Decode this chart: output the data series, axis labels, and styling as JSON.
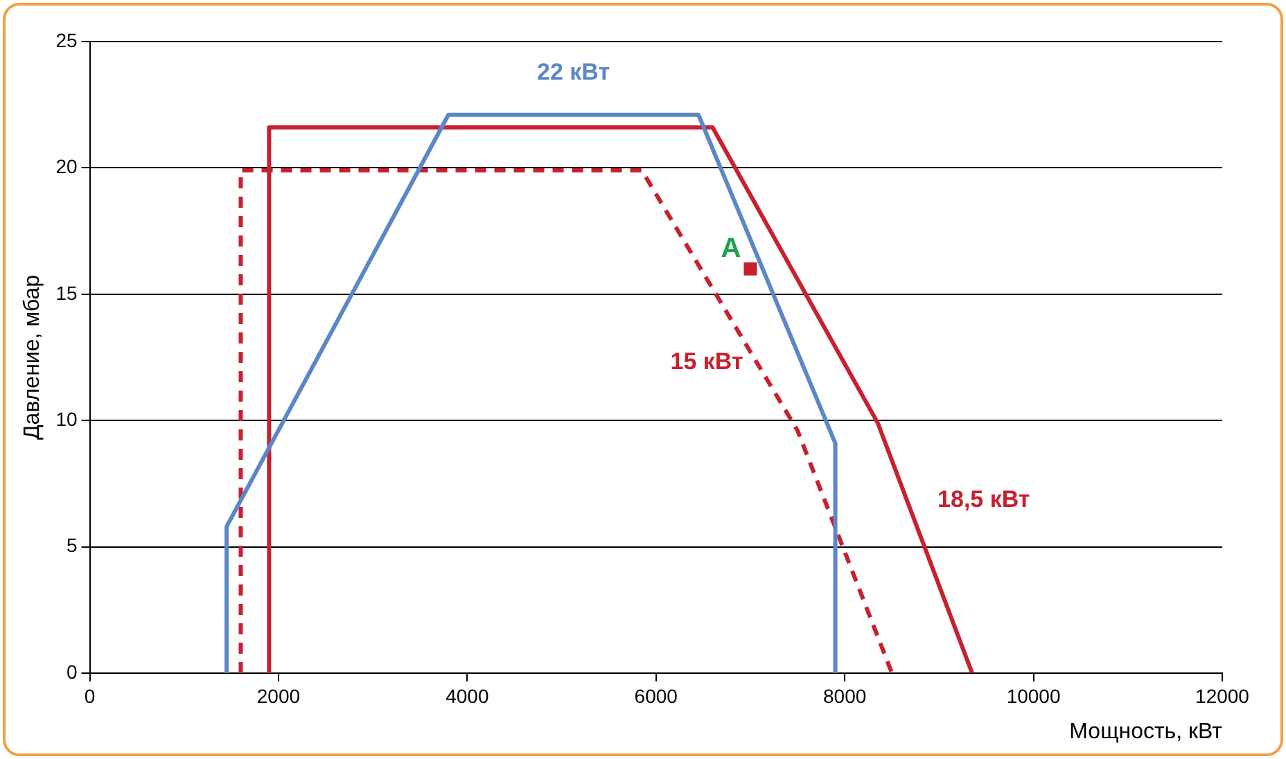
{
  "chart_data": {
    "type": "line",
    "xlabel": "Мощность, кВт",
    "ylabel": "Давление, мбар",
    "xlim": [
      0,
      12000
    ],
    "xticks": [
      0,
      2000,
      4000,
      6000,
      8000,
      10000,
      12000
    ],
    "ylim": [
      0,
      25
    ],
    "yticks": [
      0,
      5,
      10,
      15,
      20,
      25
    ],
    "grid": "y",
    "legend": false,
    "marker": "none",
    "series": [
      {
        "name": "22 кВт",
        "color": "#5b87c9",
        "line_style": "solid",
        "x": [
          1450,
          1450,
          3800,
          6450,
          7900,
          7900
        ],
        "values": [
          0,
          5.8,
          22.1,
          22.1,
          9.1,
          0
        ]
      },
      {
        "name": "18,5 кВт",
        "color": "#c8202f",
        "line_style": "solid",
        "x": [
          1900,
          1900,
          6600,
          8350,
          9350
        ],
        "values": [
          0,
          21.6,
          21.6,
          9.9,
          0
        ]
      },
      {
        "name": "15 кВт",
        "color": "#c8202f",
        "line_style": "dashed",
        "x": [
          1600,
          1600,
          5850,
          7500,
          8500
        ],
        "values": [
          0,
          19.9,
          19.9,
          9.6,
          0
        ]
      },
      {
        "type": "scatter",
        "color": "#c8202f",
        "marker": "square",
        "x": [
          7000
        ],
        "values": [
          16
        ]
      }
    ],
    "annotations": [
      "A"
    ]
  }
}
